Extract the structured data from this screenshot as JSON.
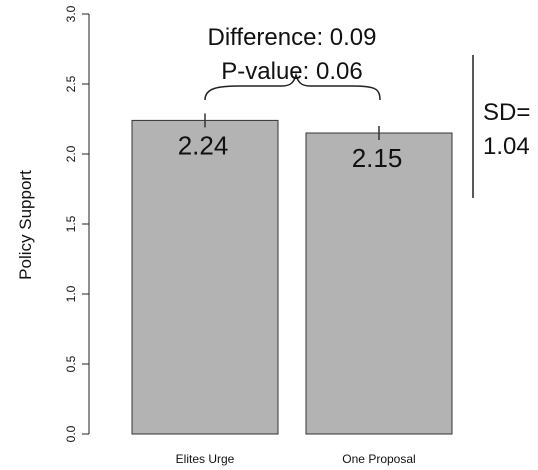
{
  "chart_data": {
    "type": "bar",
    "categories": [
      "Elites Urge",
      "One Proposal"
    ],
    "values": [
      2.24,
      2.15
    ],
    "data_labels": [
      "2.24",
      "2.15"
    ],
    "error_bar_half_width": 0.05,
    "ylabel": "Policy Support",
    "ylim": [
      0,
      3.0
    ],
    "yticks": [
      "0.0",
      "0.5",
      "1.0",
      "1.5",
      "2.0",
      "2.5",
      "3.0"
    ],
    "grid": false,
    "bar_color": "#b3b3b3",
    "annotations": {
      "difference": "Difference: 0.09",
      "pvalue": "P-value: 0.06",
      "sd_line1": "SD=",
      "sd_line2": "1.04"
    }
  }
}
